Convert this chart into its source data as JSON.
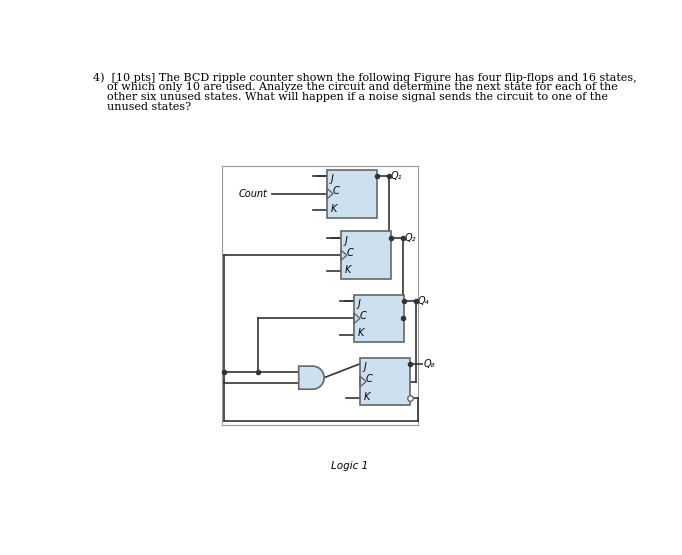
{
  "title_line1": "4)  [10 pts] The BCD ripple counter shown the following Figure has four flip-flops and 16 states,",
  "title_line2": "    of which only 10 are used. Analyze the circuit and determine the next state for each of the",
  "title_line3": "    other six unused states. What will happen if a noise signal sends the circuit to one of the",
  "title_line4": "    unused states?",
  "ff_fill": "#cce0f0",
  "ff_edge": "#666666",
  "and_fill": "#cce0f0",
  "and_edge": "#666666",
  "line_color": "#333333",
  "bg_color": "#ffffff",
  "caption": "Logic 1",
  "q_labels": [
    "Q₁",
    "Q₂",
    "Q₄",
    "Q₈"
  ],
  "count_label": "Count"
}
